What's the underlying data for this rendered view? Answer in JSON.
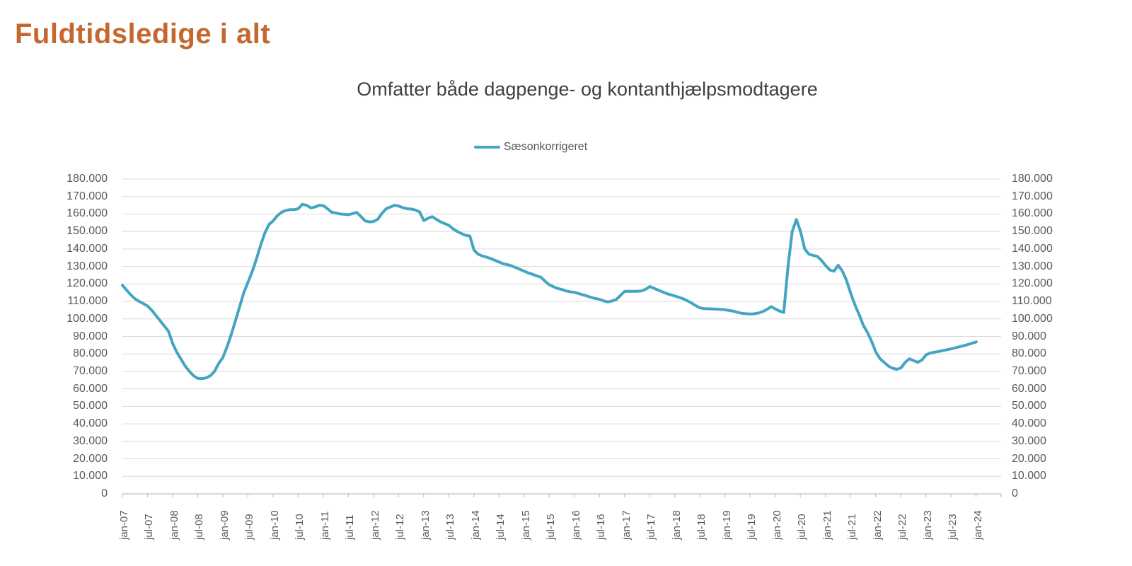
{
  "page": {
    "title": "Fuldtidsledige i alt"
  },
  "chart": {
    "subtitle": "Omfatter både dagpenge- og kontanthjælpsmodtagere",
    "legend_label": "Sæsonkorrigeret"
  },
  "colors": {
    "title_orange": "#C4682F",
    "series_teal": "#44A5C3",
    "axis_text": "#595959",
    "title_gray": "#404040",
    "gridline": "#D9D9D9",
    "axis_line": "#BFBFBF"
  },
  "chart_data": {
    "type": "line",
    "title": "Omfatter både dagpenge- og kontanthjælpsmodtagere",
    "legend_position": "top",
    "grid": "horizontal",
    "ylim": [
      0,
      180000
    ],
    "y_tick_step": 10000,
    "y_tick_labels": [
      "0",
      "10.000",
      "20.000",
      "30.000",
      "40.000",
      "50.000",
      "60.000",
      "70.000",
      "80.000",
      "90.000",
      "100.000",
      "110.000",
      "120.000",
      "130.000",
      "140.000",
      "150.000",
      "160.000",
      "170.000",
      "180.000"
    ],
    "y_axis_sides": [
      "left",
      "right"
    ],
    "x_tick_labels": [
      "jan-07",
      "jul-07",
      "jan-08",
      "jul-08",
      "jan-09",
      "jul-09",
      "jan-10",
      "jul-10",
      "jan-11",
      "jul-11",
      "jan-12",
      "jul-12",
      "jan-13",
      "jul-13",
      "jan-14",
      "jul-14",
      "jan-15",
      "jul-15",
      "jan-16",
      "jul-16",
      "jan-17",
      "jul-17",
      "jan-18",
      "jul-18",
      "jan-19",
      "jul-19",
      "jan-20",
      "jul-20",
      "jan-21",
      "jul-21",
      "jan-22",
      "jul-22",
      "jan-23",
      "jul-23",
      "jan-24"
    ],
    "x_tick_label_rotation_deg": -90,
    "series": [
      {
        "name": "Sæsonkorrigeret",
        "color": "#44A5C3",
        "x_start": "jan-07",
        "x_end": "jan-24",
        "x_frequency": "monthly",
        "values": [
          119300,
          116500,
          113800,
          111500,
          110000,
          108800,
          107400,
          105000,
          102000,
          99000,
          96000,
          93000,
          86000,
          81000,
          77000,
          73000,
          70000,
          67500,
          66000,
          65800,
          66300,
          67500,
          70000,
          74500,
          78000,
          84000,
          91000,
          99000,
          107000,
          115000,
          121000,
          127000,
          134000,
          142000,
          149000,
          154000,
          156000,
          159000,
          161000,
          162000,
          162500,
          162500,
          163000,
          165500,
          165000,
          163500,
          164000,
          165000,
          164800,
          163000,
          161000,
          160500,
          160000,
          159800,
          159600,
          160200,
          160900,
          158500,
          156000,
          155500,
          155700,
          157000,
          160300,
          163000,
          164000,
          165000,
          164500,
          163600,
          163000,
          162800,
          162300,
          161200,
          156200,
          157500,
          158500,
          157000,
          155500,
          154500,
          153500,
          151500,
          150000,
          148800,
          147800,
          147400,
          139300,
          137000,
          136000,
          135300,
          134500,
          133500,
          132500,
          131500,
          131000,
          130300,
          129300,
          128300,
          127300,
          126300,
          125500,
          124600,
          123800,
          121500,
          119500,
          118400,
          117400,
          116800,
          116000,
          115500,
          115200,
          114500,
          113800,
          113100,
          112300,
          111700,
          111200,
          110300,
          109700,
          110300,
          111100,
          113500,
          115800,
          115800,
          115800,
          115800,
          116000,
          117000,
          118500,
          117500,
          116500,
          115500,
          114500,
          113800,
          113100,
          112300,
          111500,
          110300,
          109000,
          107500,
          106300,
          105900,
          105800,
          105700,
          105600,
          105400,
          105200,
          104800,
          104400,
          103800,
          103200,
          103000,
          102800,
          103000,
          103400,
          104200,
          105500,
          107000,
          105700,
          104500,
          103700,
          130000,
          150000,
          156900,
          150000,
          140000,
          137000,
          136300,
          135800,
          133500,
          130500,
          128000,
          127300,
          130700,
          127300,
          121900,
          114500,
          108000,
          102500,
          96300,
          92200,
          87000,
          81000,
          77200,
          75200,
          73000,
          71800,
          71200,
          72000,
          75200,
          77200,
          76200,
          75200,
          76500,
          79500,
          80500,
          81000,
          81400,
          81900,
          82400,
          82900,
          83500,
          84100,
          84700,
          85400,
          86100,
          86900
        ]
      }
    ]
  }
}
